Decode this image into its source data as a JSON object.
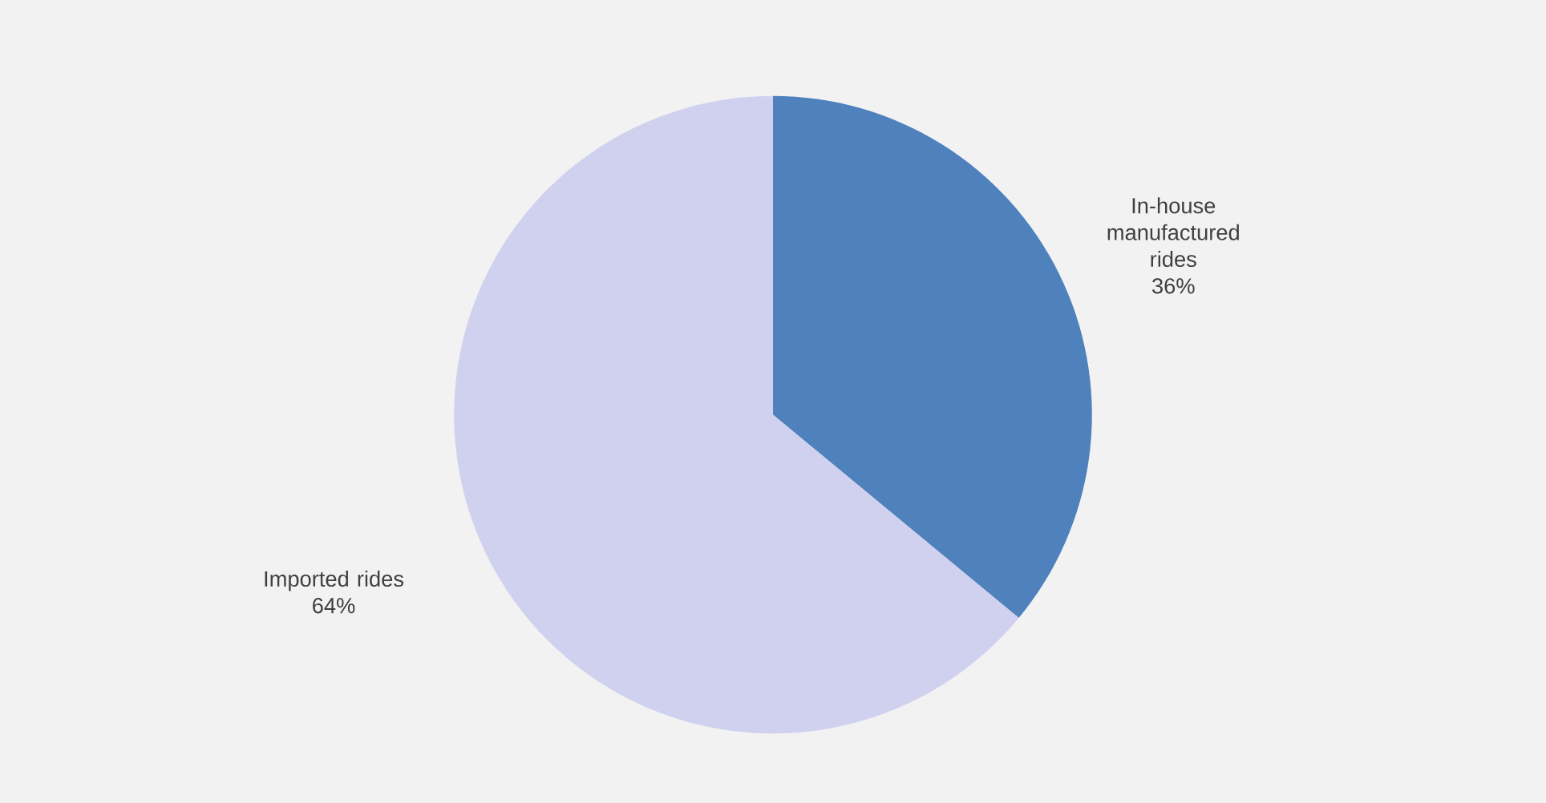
{
  "chart_data": {
    "type": "pie",
    "categories": [
      "In-house manufactured rides",
      "Imported rides"
    ],
    "values": [
      36,
      64
    ],
    "value_labels": [
      "36%",
      "64%"
    ],
    "colors": [
      "#4f81bd",
      "#d0d1ef"
    ]
  }
}
